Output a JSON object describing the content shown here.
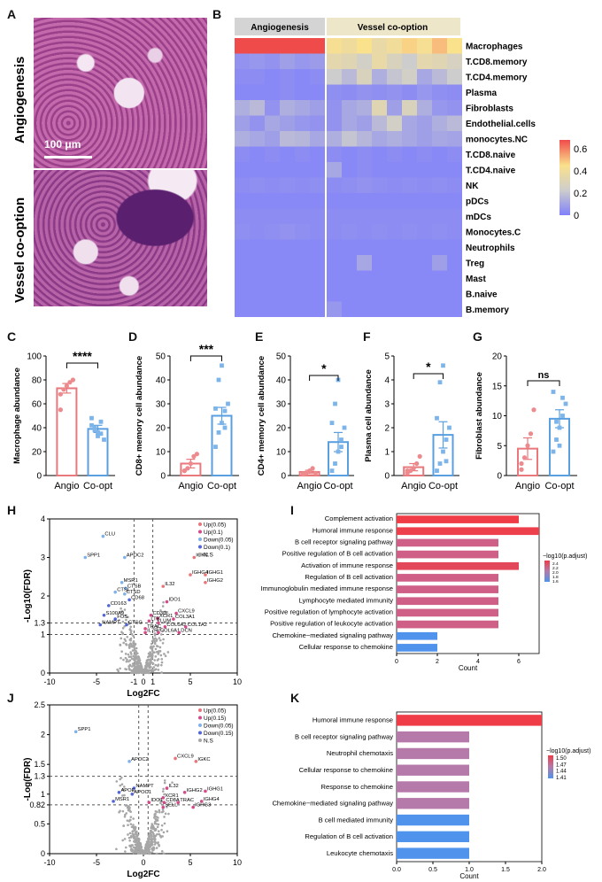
{
  "panels": {
    "A": {
      "letter": "A",
      "labels": [
        "Angiogenesis",
        "Vessel co-option"
      ],
      "scale_bar": "100 μm"
    },
    "B": {
      "letter": "B",
      "groups": [
        "Angiogenesis",
        "Vessel co-option"
      ],
      "rows": [
        "Macrophages",
        "T.CD8.memory",
        "T.CD4.memory",
        "Plasma",
        "Fibroblasts",
        "Endothelial.cells",
        "monocytes.NC",
        "T.CD8.naive",
        "T.CD4.naive",
        "NK",
        "pDCs",
        "mDCs",
        "Monocytes.C",
        "Neutrophils",
        "Treg",
        "Mast",
        "B.naive",
        "B.memory"
      ],
      "legend_ticks": [
        "0.6",
        "0.4",
        "0.2",
        "0"
      ]
    },
    "C": {
      "letter": "C"
    },
    "D": {
      "letter": "D"
    },
    "E": {
      "letter": "E"
    },
    "F": {
      "letter": "F"
    },
    "G": {
      "letter": "G"
    },
    "H": {
      "letter": "H"
    },
    "I": {
      "letter": "I"
    },
    "J": {
      "letter": "J"
    },
    "K": {
      "letter": "K"
    }
  },
  "chart_data": [
    {
      "id": "B",
      "type": "heatmap",
      "groups": [
        "Angiogenesis",
        "Vessel co-option"
      ],
      "rows": [
        "Macrophages",
        "T.CD8.memory",
        "T.CD4.memory",
        "Plasma",
        "Fibroblasts",
        "Endothelial.cells",
        "monocytes.NC",
        "T.CD8.naive",
        "T.CD4.naive",
        "NK",
        "pDCs",
        "mDCs",
        "Monocytes.C",
        "Neutrophils",
        "Treg",
        "Mast",
        "B.naive",
        "B.memory"
      ],
      "n_cols_angio": 6,
      "n_cols_coopt": 9,
      "values": [
        [
          0.68,
          0.7,
          0.7,
          0.72,
          0.68,
          0.7,
          0.38,
          0.35,
          0.4,
          0.32,
          0.36,
          0.42,
          0.38,
          0.45,
          0.4
        ],
        [
          0.05,
          0.06,
          0.05,
          0.08,
          0.06,
          0.07,
          0.3,
          0.28,
          0.22,
          0.32,
          0.25,
          0.2,
          0.3,
          0.28,
          0.24
        ],
        [
          0.03,
          0.03,
          0.02,
          0.03,
          0.02,
          0.03,
          0.2,
          0.15,
          0.25,
          0.12,
          0.18,
          0.22,
          0.1,
          0.15,
          0.2
        ],
        [
          0.02,
          0.02,
          0.02,
          0.03,
          0.02,
          0.02,
          0.04,
          0.03,
          0.05,
          0.04,
          0.05,
          0.03,
          0.06,
          0.04,
          0.03
        ],
        [
          0.12,
          0.15,
          0.05,
          0.12,
          0.1,
          0.08,
          0.05,
          0.1,
          0.12,
          0.28,
          0.08,
          0.25,
          0.12,
          0.06,
          0.05
        ],
        [
          0.08,
          0.05,
          0.1,
          0.08,
          0.06,
          0.05,
          0.05,
          0.1,
          0.08,
          0.15,
          0.22,
          0.1,
          0.08,
          0.12,
          0.15
        ],
        [
          0.12,
          0.1,
          0.08,
          0.15,
          0.14,
          0.1,
          0.12,
          0.18,
          0.14,
          0.1,
          0.12,
          0.1,
          0.08,
          0.1,
          0.09
        ],
        [
          0.03,
          0.02,
          0.03,
          0.02,
          0.03,
          0.02,
          0.03,
          0.02,
          0.03,
          0.02,
          0.03,
          0.02,
          0.03,
          0.02,
          0.03
        ],
        [
          0.02,
          0.02,
          0.02,
          0.02,
          0.02,
          0.02,
          0.1,
          0.02,
          0.03,
          0.02,
          0.02,
          0.02,
          0.02,
          0.02,
          0.02
        ],
        [
          0.03,
          0.04,
          0.03,
          0.04,
          0.03,
          0.04,
          0.03,
          0.04,
          0.05,
          0.04,
          0.03,
          0.04,
          0.03,
          0.04,
          0.03
        ],
        [
          0.02,
          0.02,
          0.02,
          0.02,
          0.02,
          0.02,
          0.02,
          0.02,
          0.02,
          0.02,
          0.02,
          0.02,
          0.02,
          0.02,
          0.02
        ],
        [
          0.03,
          0.03,
          0.03,
          0.03,
          0.03,
          0.03,
          0.03,
          0.03,
          0.03,
          0.03,
          0.03,
          0.03,
          0.03,
          0.03,
          0.03
        ],
        [
          0.04,
          0.03,
          0.04,
          0.05,
          0.04,
          0.03,
          0.03,
          0.04,
          0.03,
          0.04,
          0.03,
          0.04,
          0.03,
          0.04,
          0.03
        ],
        [
          0.02,
          0.02,
          0.02,
          0.02,
          0.02,
          0.02,
          0.02,
          0.02,
          0.02,
          0.02,
          0.02,
          0.02,
          0.02,
          0.02,
          0.02
        ],
        [
          0.02,
          0.02,
          0.02,
          0.02,
          0.02,
          0.02,
          0.02,
          0.02,
          0.1,
          0.02,
          0.02,
          0.02,
          0.02,
          0.08,
          0.02
        ],
        [
          0.02,
          0.02,
          0.02,
          0.02,
          0.02,
          0.02,
          0.02,
          0.02,
          0.02,
          0.02,
          0.02,
          0.02,
          0.02,
          0.02,
          0.02
        ],
        [
          0.02,
          0.02,
          0.02,
          0.02,
          0.02,
          0.02,
          0.02,
          0.02,
          0.02,
          0.02,
          0.02,
          0.02,
          0.02,
          0.02,
          0.02
        ],
        [
          0.02,
          0.02,
          0.02,
          0.02,
          0.02,
          0.02,
          0.06,
          0.02,
          0.02,
          0.02,
          0.02,
          0.02,
          0.02,
          0.02,
          0.02
        ]
      ],
      "legend_range": [
        0,
        0.6
      ]
    },
    {
      "id": "C",
      "type": "bar",
      "categories": [
        "Angio",
        "Co-opt"
      ],
      "values": [
        73,
        39
      ],
      "errors": [
        4,
        3
      ],
      "ylabel": "Macrophage abundance",
      "ylim": [
        0,
        100
      ],
      "yticks": [
        0,
        20,
        40,
        60,
        80,
        100
      ],
      "signif": "****",
      "points": [
        [
          68,
          72,
          75,
          78,
          80,
          55
        ],
        [
          42,
          38,
          36,
          45,
          30,
          48,
          40,
          33,
          35
        ]
      ]
    },
    {
      "id": "D",
      "type": "bar",
      "categories": [
        "Angio",
        "Co-opt"
      ],
      "values": [
        5,
        25
      ],
      "errors": [
        1.8,
        3.5
      ],
      "ylabel": "CD8+ memory cell abundance",
      "ylim": [
        0,
        50
      ],
      "yticks": [
        0,
        10,
        20,
        30,
        40,
        50
      ],
      "signif": "***",
      "points": [
        [
          2,
          3,
          5,
          8,
          9,
          2
        ],
        [
          12,
          18,
          22,
          27,
          30,
          28,
          40,
          46,
          20
        ]
      ]
    },
    {
      "id": "E",
      "type": "bar",
      "categories": [
        "Angio",
        "Co-opt"
      ],
      "values": [
        1.5,
        14
      ],
      "errors": [
        0.7,
        4
      ],
      "ylabel": "CD4+ memory cell abundance",
      "ylim": [
        0,
        50
      ],
      "yticks": [
        0,
        10,
        20,
        30,
        40,
        50
      ],
      "signif": "*",
      "points": [
        [
          0.5,
          1,
          2,
          3,
          1,
          0.8
        ],
        [
          2,
          5,
          10,
          15,
          20,
          22,
          30,
          40,
          12
        ]
      ]
    },
    {
      "id": "F",
      "type": "bar",
      "categories": [
        "Angio",
        "Co-opt"
      ],
      "values": [
        0.35,
        1.7
      ],
      "errors": [
        0.15,
        0.55
      ],
      "ylabel": "Plasma cell abundance",
      "ylim": [
        0,
        5
      ],
      "yticks": [
        0,
        1,
        2,
        3,
        4,
        5
      ],
      "signif": "*",
      "points": [
        [
          0.1,
          0.2,
          0.3,
          0.5,
          0.8,
          0.2
        ],
        [
          0.2,
          0.5,
          1.0,
          1.5,
          2.0,
          2.4,
          3.9,
          4.6,
          0.6
        ]
      ]
    },
    {
      "id": "G",
      "type": "bar",
      "categories": [
        "Angio",
        "Co-opt"
      ],
      "values": [
        4.5,
        9.5
      ],
      "errors": [
        1.8,
        1.5
      ],
      "ylabel": "Fibroblast abundance",
      "ylim": [
        0,
        20
      ],
      "yticks": [
        0,
        5,
        10,
        15,
        20
      ],
      "signif": "ns",
      "points": [
        [
          1,
          3,
          5,
          7,
          11,
          2
        ],
        [
          4,
          6,
          8,
          10,
          12,
          14,
          9,
          5,
          13
        ]
      ]
    },
    {
      "id": "H",
      "type": "scatter",
      "xlabel": "Log2FC",
      "ylabel": "-Log10(FDR)",
      "xlim": [
        -10,
        10
      ],
      "ylim": [
        0,
        4
      ],
      "xticks": [
        -10,
        -5,
        -1,
        0,
        1,
        5,
        10
      ],
      "yticks": [
        0,
        1,
        1.3,
        2,
        3,
        4
      ],
      "hlines": [
        1.3,
        1
      ],
      "vlines": [
        -1,
        1
      ],
      "legend": [
        {
          "label": "Up(0.05)",
          "color": "#e8747c"
        },
        {
          "label": "Up(0.1)",
          "color": "#d24b8a"
        },
        {
          "label": "Down(0.05)",
          "color": "#7fb2ea"
        },
        {
          "label": "Down(0.1)",
          "color": "#5366d6"
        },
        {
          "label": "N.S",
          "color": "#a6a6a6"
        }
      ],
      "labels": [
        {
          "t": "CLU",
          "x": -4.3,
          "y": 3.55
        },
        {
          "t": "SPP1",
          "x": -6.2,
          "y": 3.0
        },
        {
          "t": "APOC2",
          "x": -2.0,
          "y": 3.0
        },
        {
          "t": "IGKC",
          "x": 5.4,
          "y": 3.0
        },
        {
          "t": "IGHG4",
          "x": 5.0,
          "y": 2.55
        },
        {
          "t": "IGHG1",
          "x": 6.6,
          "y": 2.55
        },
        {
          "t": "IGHG2",
          "x": 6.6,
          "y": 2.35
        },
        {
          "t": "MSR1",
          "x": -2.3,
          "y": 2.35
        },
        {
          "t": "CTSB",
          "x": -1.9,
          "y": 2.2
        },
        {
          "t": "CTSL",
          "x": -3.0,
          "y": 2.1
        },
        {
          "t": "CTSD",
          "x": -2.0,
          "y": 2.05
        },
        {
          "t": "CD68",
          "x": -1.5,
          "y": 1.9
        },
        {
          "t": "CD163",
          "x": -3.7,
          "y": 1.75
        },
        {
          "t": "IL32",
          "x": 2.1,
          "y": 2.25
        },
        {
          "t": "IDO1",
          "x": 2.5,
          "y": 1.85
        },
        {
          "t": "S100A9",
          "x": -4.2,
          "y": 1.5
        },
        {
          "t": "FOS",
          "x": -3.0,
          "y": 1.4
        },
        {
          "t": "NAMPT",
          "x": -4.6,
          "y": 1.25
        },
        {
          "t": "CTSG",
          "x": -1.8,
          "y": 1.25
        },
        {
          "t": "CXCL9",
          "x": 3.5,
          "y": 1.55
        },
        {
          "t": "CD3D",
          "x": 0.8,
          "y": 1.5
        },
        {
          "t": "XCR1",
          "x": 1.5,
          "y": 1.42
        },
        {
          "t": "LTB",
          "x": 0.6,
          "y": 1.35
        },
        {
          "t": "LUM",
          "x": 1.6,
          "y": 1.3
        },
        {
          "t": "COL3A1",
          "x": 3.2,
          "y": 1.4
        },
        {
          "t": "TRAC",
          "x": 0.2,
          "y": 1.15
        },
        {
          "t": "COL6A2",
          "x": 2.3,
          "y": 1.2
        },
        {
          "t": "COL1A2",
          "x": 4.5,
          "y": 1.2
        },
        {
          "t": "IL7R",
          "x": 0.2,
          "y": 1.05
        },
        {
          "t": "COL6A1",
          "x": 1.6,
          "y": 1.05
        },
        {
          "t": "DCN",
          "x": 3.8,
          "y": 1.05
        }
      ]
    },
    {
      "id": "I",
      "type": "bar",
      "orientation": "horizontal",
      "categories": [
        "Complement activation",
        "Humoral immune response",
        "B cell receptor signaling pathway",
        "Positive regulation of B cell activation",
        "Activation of immune response",
        "Regulation of B cell activation",
        "Immunoglobulin mediated immune response",
        "Lymphocyte mediated immunity",
        "Positive regulation of lymphocyte activation",
        "Positive regulation of leukocyte activation",
        "Chemokine−mediated signaling pathway",
        "Cellular response to chemokine"
      ],
      "values": [
        6,
        7,
        5,
        5,
        6,
        5,
        5,
        5,
        5,
        5,
        2,
        2
      ],
      "xlabel": "Count",
      "xlim": [
        0,
        7
      ],
      "xticks": [
        0,
        2,
        4,
        6
      ],
      "legend_title": "−log10(p.adjust)",
      "legend_ticks": [
        "2.4",
        "2.2",
        "2.0",
        "1.8",
        "1.6"
      ],
      "colors": [
        "#ef3c47",
        "#ed404c",
        "#cf5f86",
        "#cf5f86",
        "#e24859",
        "#cf5f86",
        "#cf5f86",
        "#cf5f86",
        "#cf5f86",
        "#cf5f86",
        "#4f93ec",
        "#4f93ec"
      ]
    },
    {
      "id": "J",
      "type": "scatter",
      "xlabel": "Log2FC",
      "ylabel": "-Log(FDR)",
      "xlim": [
        -10,
        10
      ],
      "ylim": [
        0,
        2.5
      ],
      "xticks": [
        -10,
        -5,
        0,
        5,
        10
      ],
      "yticks": [
        0,
        0.5,
        0.82,
        1,
        1.3,
        1.5,
        2,
        2.5
      ],
      "hlines": [
        1.3,
        0.82
      ],
      "vlines": [
        -0.5,
        0.5
      ],
      "legend": [
        {
          "label": "Up(0.05)",
          "color": "#e8747c"
        },
        {
          "label": "Up(0.15)",
          "color": "#d24b8a"
        },
        {
          "label": "Down(0.05)",
          "color": "#7fb2ea"
        },
        {
          "label": "Down(0.15)",
          "color": "#5366d6"
        },
        {
          "label": "N.S",
          "color": "#a6a6a6"
        }
      ],
      "labels": [
        {
          "t": "SPP1",
          "x": -7.2,
          "y": 2.05
        },
        {
          "t": "APOC2",
          "x": -1.5,
          "y": 1.55
        },
        {
          "t": "CXCL9",
          "x": 3.4,
          "y": 1.6
        },
        {
          "t": "IGKC",
          "x": 5.6,
          "y": 1.55
        },
        {
          "t": "NAMPT",
          "x": -1.0,
          "y": 1.1
        },
        {
          "t": "APOE",
          "x": -2.6,
          "y": 1.03
        },
        {
          "t": "APOC1",
          "x": -1.2,
          "y": 1.0
        },
        {
          "t": "MSR1",
          "x": -3.2,
          "y": 0.88
        },
        {
          "t": "IDO1",
          "x": 0.6,
          "y": 0.86
        },
        {
          "t": "IL32",
          "x": 2.5,
          "y": 1.1
        },
        {
          "t": "IGHG2",
          "x": 4.4,
          "y": 1.03
        },
        {
          "t": "IGHG1",
          "x": 6.6,
          "y": 1.05
        },
        {
          "t": "XCR1",
          "x": 2.1,
          "y": 0.94
        },
        {
          "t": "CD8A",
          "x": 2.2,
          "y": 0.86
        },
        {
          "t": "TRAC",
          "x": 3.7,
          "y": 0.86
        },
        {
          "t": "IGHG4",
          "x": 6.2,
          "y": 0.88
        },
        {
          "t": "SELL",
          "x": 2.1,
          "y": 0.78
        },
        {
          "t": "IGHG3",
          "x": 5.3,
          "y": 0.78
        }
      ]
    },
    {
      "id": "K",
      "type": "bar",
      "orientation": "horizontal",
      "categories": [
        "Humoral immune response",
        "B cell receptor signaling pathway",
        "Neutrophil chemotaxis",
        "Cellular response to chemokine",
        "Response to chemokine",
        "Chemokine−mediated signaling pathway",
        "B cell mediated immunity",
        "Regulation of B cell activation",
        "Leukocyte chemotaxis"
      ],
      "values": [
        2,
        1,
        1,
        1,
        1,
        1,
        1,
        1,
        1
      ],
      "xlabel": "Count",
      "xlim": [
        0,
        2
      ],
      "xticks": [
        "0.0",
        "0.5",
        "1.0",
        "1.5",
        "2.0"
      ],
      "legend_title": "−log10(p.adjust)",
      "legend_ticks": [
        "1.50",
        "1.47",
        "1.44",
        "1.41"
      ],
      "colors": [
        "#ef3c47",
        "#b57aaa",
        "#b57aaa",
        "#b57aaa",
        "#b57aaa",
        "#b57aaa",
        "#4f93ec",
        "#4f93ec",
        "#4f93ec"
      ]
    }
  ]
}
